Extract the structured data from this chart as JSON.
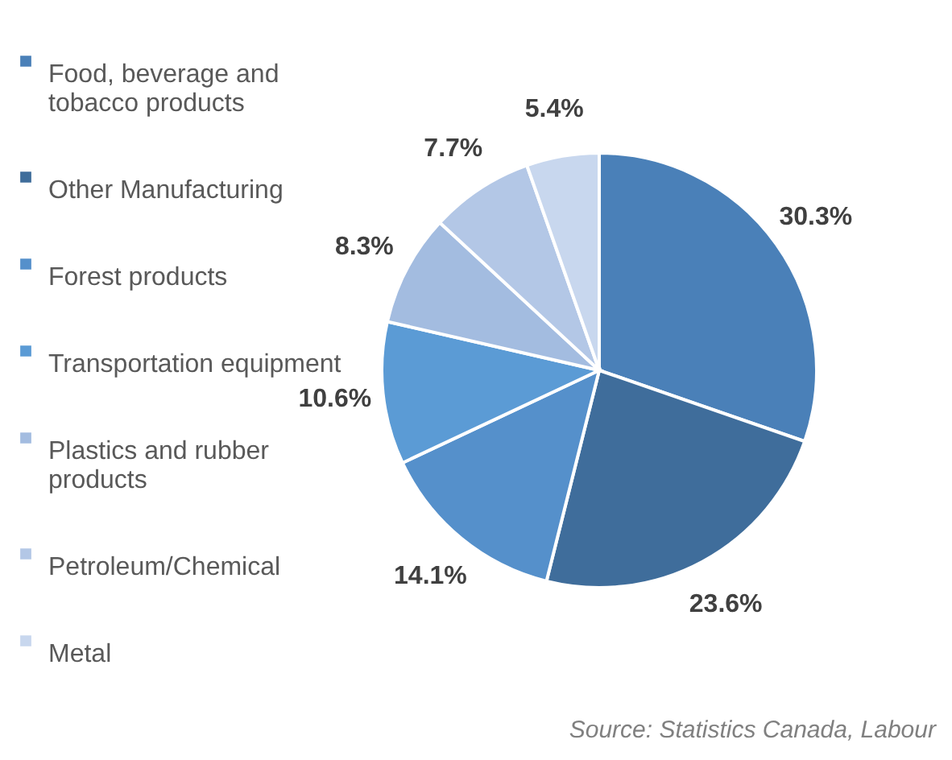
{
  "chart_data": {
    "type": "pie",
    "categories": [
      "Food, beverage and tobacco products",
      "Other Manufacturing",
      "Forest products",
      "Transportation equipment",
      "Plastics and rubber products",
      "Petroleum/Chemical",
      "Metal"
    ],
    "values": [
      30.3,
      23.6,
      14.1,
      10.6,
      8.3,
      7.7,
      5.4
    ],
    "value_labels": [
      "30.3%",
      "23.6%",
      "14.1%",
      "10.6%",
      "8.3%",
      "7.7%",
      "5.4%"
    ],
    "colors": [
      "#4a80b8",
      "#3f6d9b",
      "#5590cb",
      "#5b9bd5",
      "#a3bce0",
      "#b3c7e6",
      "#c8d7ee"
    ],
    "legend": "left",
    "annotations": [
      "Source: Statistics Canada, Labour"
    ]
  }
}
